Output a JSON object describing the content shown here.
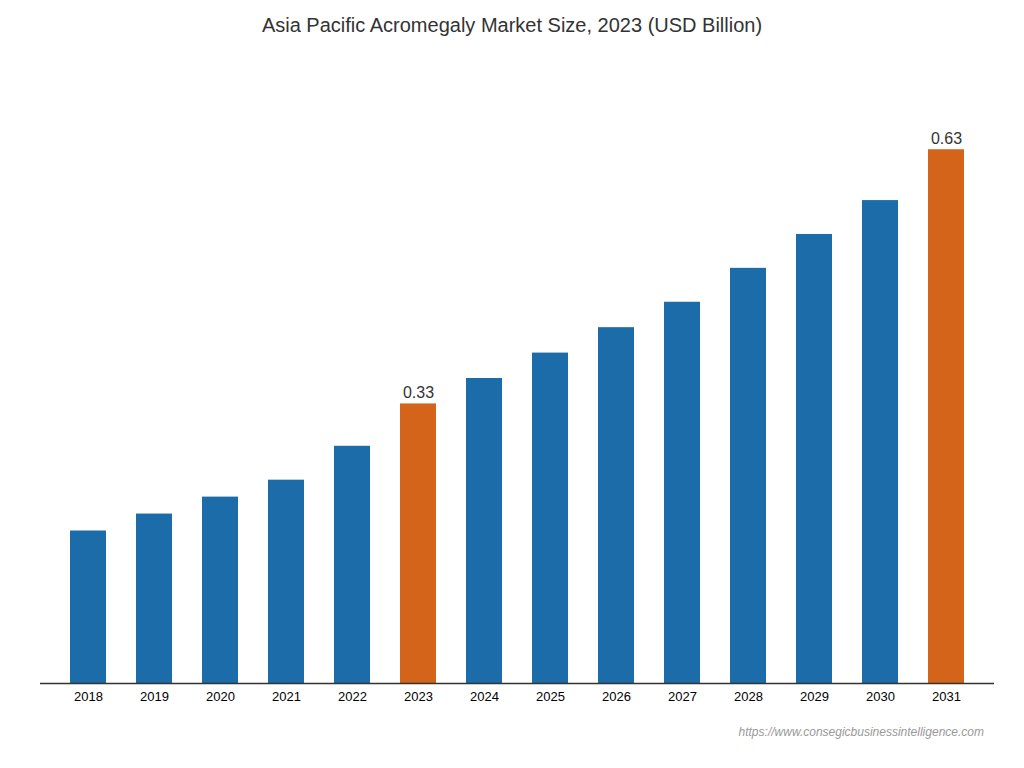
{
  "chart_data": {
    "type": "bar",
    "title": "Asia Pacific Acromegaly Market Size, 2023 (USD Billion)",
    "categories": [
      "2018",
      "2019",
      "2020",
      "2021",
      "2022",
      "2023",
      "2024",
      "2025",
      "2026",
      "2027",
      "2028",
      "2029",
      "2030",
      "2031"
    ],
    "values": [
      0.18,
      0.2,
      0.22,
      0.24,
      0.28,
      0.33,
      0.36,
      0.39,
      0.42,
      0.45,
      0.49,
      0.53,
      0.57,
      0.63
    ],
    "value_labels": [
      null,
      null,
      null,
      null,
      null,
      "0.33",
      null,
      null,
      null,
      null,
      null,
      null,
      null,
      "0.63"
    ],
    "colors": [
      "#1b6ca8",
      "#1b6ca8",
      "#1b6ca8",
      "#1b6ca8",
      "#1b6ca8",
      "#d4641a",
      "#1b6ca8",
      "#1b6ca8",
      "#1b6ca8",
      "#1b6ca8",
      "#1b6ca8",
      "#1b6ca8",
      "#1b6ca8",
      "#d4641a"
    ],
    "ylim": [
      0,
      0.72
    ],
    "grid": false,
    "data_labels": true,
    "tick_labels": "x",
    "annotations": [
      "https://www.consegicbusinessintelligence.com"
    ]
  }
}
